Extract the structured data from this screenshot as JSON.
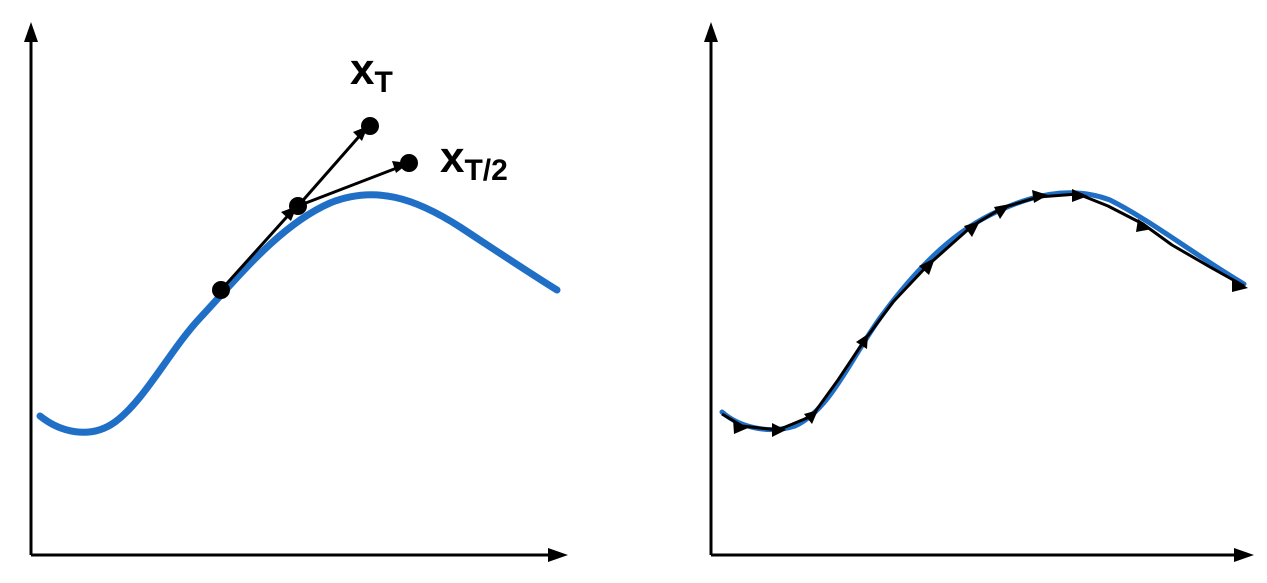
{
  "labels": {
    "x_t_main": "x",
    "x_t_sub": "T",
    "x_t2_main": "x",
    "x_t2_sub": "T/2"
  },
  "colors": {
    "curve": "#1f6fc6",
    "ink": "#000000",
    "background": "#ffffff"
  }
}
